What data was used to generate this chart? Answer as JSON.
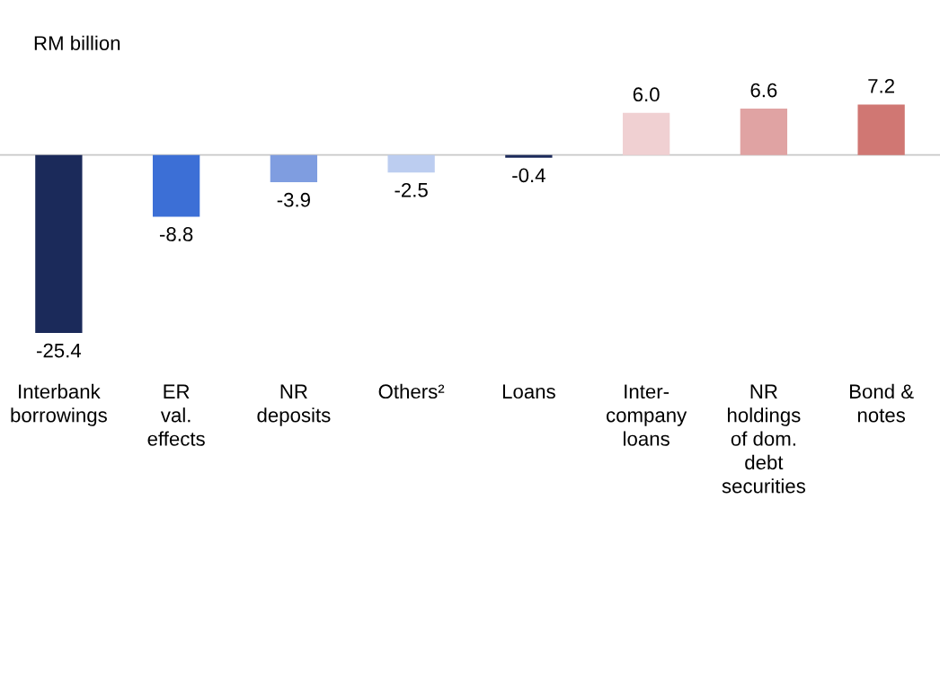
{
  "chart_data": {
    "type": "bar",
    "ylabel": "RM billion",
    "categories": [
      "Interbank\nborrowings",
      "ER\nval.\neffects",
      "NR\ndeposits",
      "Others²",
      "Loans",
      "Inter-\ncompany\nloans",
      "NR\nholdings\nof dom.\ndebt\nsecurities",
      "Bond &\nnotes"
    ],
    "values": [
      -25.4,
      -8.8,
      -3.9,
      -2.5,
      -0.4,
      6.0,
      6.6,
      7.2
    ],
    "colors": [
      "#1b2a5a",
      "#3c6fd6",
      "#7f9de0",
      "#bccdf0",
      "#1b2a5a",
      "#f0d0d2",
      "#e0a3a3",
      "#d07773"
    ],
    "value_labels": [
      "-25.4",
      "-8.8",
      "-3.9",
      "-2.5",
      "-0.4",
      "6.0",
      "6.6",
      "7.2"
    ],
    "tick_labels": "x",
    "grid": false,
    "legend": false
  }
}
